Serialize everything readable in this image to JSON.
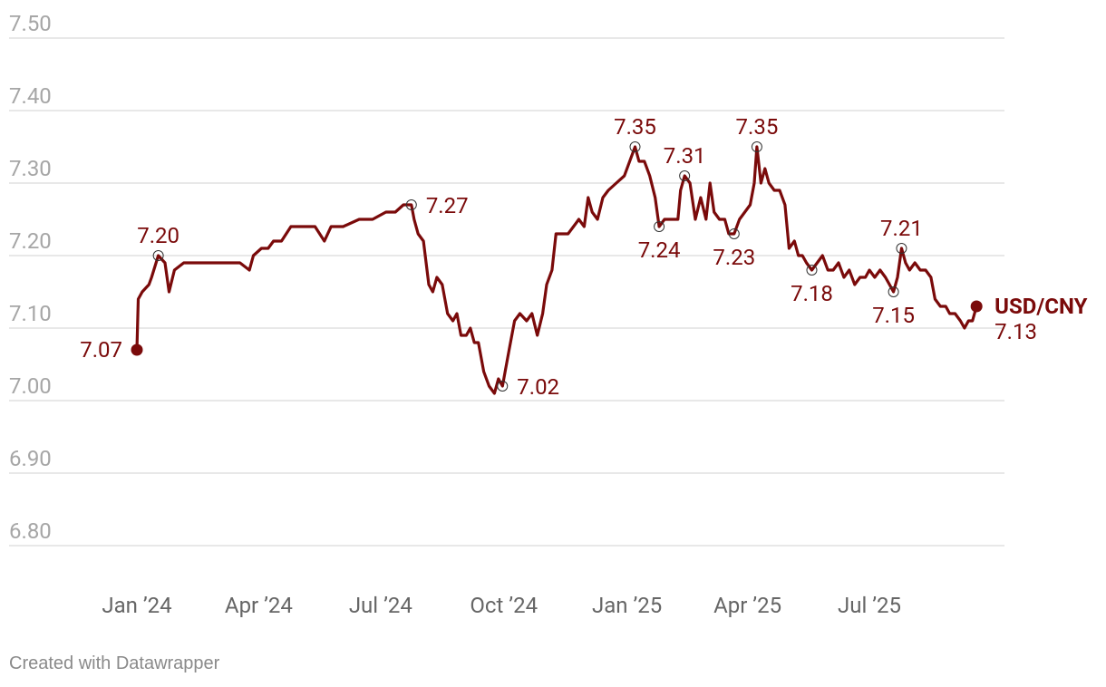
{
  "chart_data": {
    "type": "line",
    "title": "",
    "xlabel": "",
    "ylabel": "",
    "ylim": [
      6.8,
      7.5
    ],
    "y_ticks": [
      "6.80",
      "6.90",
      "7.00",
      "7.10",
      "7.20",
      "7.30",
      "7.40",
      "7.50"
    ],
    "x_ticks": [
      {
        "label": "Jan ’24",
        "x": "2024-01-01"
      },
      {
        "label": "Apr ’24",
        "x": "2024-04-01"
      },
      {
        "label": "Jul ’24",
        "x": "2024-07-01"
      },
      {
        "label": "Oct ’24",
        "x": "2024-10-01"
      },
      {
        "label": "Jan ’25",
        "x": "2025-01-01"
      },
      {
        "label": "Apr ’25",
        "x": "2025-04-01"
      },
      {
        "label": "Jul ’25",
        "x": "2025-07-01"
      }
    ],
    "x_range": [
      "2023-12-01",
      "2025-09-30"
    ],
    "series": [
      {
        "name": "USD/CNY",
        "color": "#7a0a0a",
        "points": [
          [
            "2024-01-01",
            7.07
          ],
          [
            "2024-01-02",
            7.14
          ],
          [
            "2024-01-05",
            7.15
          ],
          [
            "2024-01-10",
            7.16
          ],
          [
            "2024-01-12",
            7.17
          ],
          [
            "2024-01-17",
            7.2
          ],
          [
            "2024-01-22",
            7.19
          ],
          [
            "2024-01-25",
            7.15
          ],
          [
            "2024-01-29",
            7.18
          ],
          [
            "2024-02-05",
            7.19
          ],
          [
            "2024-02-12",
            7.19
          ],
          [
            "2024-02-20",
            7.19
          ],
          [
            "2024-03-01",
            7.19
          ],
          [
            "2024-03-10",
            7.19
          ],
          [
            "2024-03-18",
            7.19
          ],
          [
            "2024-03-25",
            7.18
          ],
          [
            "2024-03-28",
            7.2
          ],
          [
            "2024-04-03",
            7.21
          ],
          [
            "2024-04-08",
            7.21
          ],
          [
            "2024-04-12",
            7.22
          ],
          [
            "2024-04-18",
            7.22
          ],
          [
            "2024-04-25",
            7.24
          ],
          [
            "2024-05-05",
            7.24
          ],
          [
            "2024-05-13",
            7.24
          ],
          [
            "2024-05-20",
            7.22
          ],
          [
            "2024-05-25",
            7.24
          ],
          [
            "2024-06-03",
            7.24
          ],
          [
            "2024-06-15",
            7.25
          ],
          [
            "2024-06-25",
            7.25
          ],
          [
            "2024-07-05",
            7.26
          ],
          [
            "2024-07-12",
            7.26
          ],
          [
            "2024-07-18",
            7.27
          ],
          [
            "2024-07-24",
            7.27
          ],
          [
            "2024-07-26",
            7.25
          ],
          [
            "2024-07-29",
            7.23
          ],
          [
            "2024-08-02",
            7.22
          ],
          [
            "2024-08-06",
            7.16
          ],
          [
            "2024-08-09",
            7.15
          ],
          [
            "2024-08-12",
            7.17
          ],
          [
            "2024-08-16",
            7.16
          ],
          [
            "2024-08-20",
            7.12
          ],
          [
            "2024-08-24",
            7.11
          ],
          [
            "2024-08-27",
            7.12
          ],
          [
            "2024-08-30",
            7.09
          ],
          [
            "2024-09-03",
            7.09
          ],
          [
            "2024-09-06",
            7.1
          ],
          [
            "2024-09-09",
            7.08
          ],
          [
            "2024-09-12",
            7.08
          ],
          [
            "2024-09-16",
            7.04
          ],
          [
            "2024-09-20",
            7.02
          ],
          [
            "2024-09-24",
            7.01
          ],
          [
            "2024-09-27",
            7.03
          ],
          [
            "2024-09-30",
            7.02
          ],
          [
            "2024-10-02",
            7.04
          ],
          [
            "2024-10-05",
            7.07
          ],
          [
            "2024-10-09",
            7.11
          ],
          [
            "2024-10-13",
            7.12
          ],
          [
            "2024-10-18",
            7.11
          ],
          [
            "2024-10-22",
            7.12
          ],
          [
            "2024-10-26",
            7.09
          ],
          [
            "2024-10-30",
            7.12
          ],
          [
            "2024-11-02",
            7.16
          ],
          [
            "2024-11-06",
            7.18
          ],
          [
            "2024-11-09",
            7.23
          ],
          [
            "2024-11-13",
            7.23
          ],
          [
            "2024-11-18",
            7.23
          ],
          [
            "2024-11-22",
            7.24
          ],
          [
            "2024-11-26",
            7.25
          ],
          [
            "2024-11-30",
            7.24
          ],
          [
            "2024-12-03",
            7.28
          ],
          [
            "2024-12-06",
            7.26
          ],
          [
            "2024-12-10",
            7.25
          ],
          [
            "2024-12-14",
            7.28
          ],
          [
            "2024-12-18",
            7.29
          ],
          [
            "2024-12-24",
            7.3
          ],
          [
            "2024-12-30",
            7.31
          ],
          [
            "2025-01-03",
            7.33
          ],
          [
            "2025-01-07",
            7.35
          ],
          [
            "2025-01-10",
            7.33
          ],
          [
            "2025-01-14",
            7.33
          ],
          [
            "2025-01-18",
            7.31
          ],
          [
            "2025-01-22",
            7.28
          ],
          [
            "2025-01-25",
            7.24
          ],
          [
            "2025-01-29",
            7.25
          ],
          [
            "2025-02-04",
            7.25
          ],
          [
            "2025-02-08",
            7.25
          ],
          [
            "2025-02-10",
            7.29
          ],
          [
            "2025-02-13",
            7.31
          ],
          [
            "2025-02-17",
            7.3
          ],
          [
            "2025-02-21",
            7.25
          ],
          [
            "2025-02-25",
            7.28
          ],
          [
            "2025-03-01",
            7.25
          ],
          [
            "2025-03-04",
            7.3
          ],
          [
            "2025-03-07",
            7.26
          ],
          [
            "2025-03-11",
            7.25
          ],
          [
            "2025-03-15",
            7.25
          ],
          [
            "2025-03-18",
            7.23
          ],
          [
            "2025-03-22",
            7.23
          ],
          [
            "2025-03-26",
            7.25
          ],
          [
            "2025-03-30",
            7.26
          ],
          [
            "2025-04-03",
            7.27
          ],
          [
            "2025-04-06",
            7.3
          ],
          [
            "2025-04-08",
            7.35
          ],
          [
            "2025-04-11",
            7.3
          ],
          [
            "2025-04-14",
            7.32
          ],
          [
            "2025-04-17",
            7.3
          ],
          [
            "2025-04-21",
            7.29
          ],
          [
            "2025-04-25",
            7.29
          ],
          [
            "2025-04-29",
            7.27
          ],
          [
            "2025-05-02",
            7.21
          ],
          [
            "2025-05-06",
            7.22
          ],
          [
            "2025-05-09",
            7.2
          ],
          [
            "2025-05-12",
            7.2
          ],
          [
            "2025-05-15",
            7.19
          ],
          [
            "2025-05-19",
            7.18
          ],
          [
            "2025-05-23",
            7.19
          ],
          [
            "2025-05-27",
            7.2
          ],
          [
            "2025-05-31",
            7.18
          ],
          [
            "2025-06-04",
            7.18
          ],
          [
            "2025-06-08",
            7.19
          ],
          [
            "2025-06-12",
            7.17
          ],
          [
            "2025-06-16",
            7.18
          ],
          [
            "2025-06-20",
            7.16
          ],
          [
            "2025-06-24",
            7.17
          ],
          [
            "2025-06-28",
            7.17
          ],
          [
            "2025-07-01",
            7.18
          ],
          [
            "2025-07-05",
            7.17
          ],
          [
            "2025-07-09",
            7.18
          ],
          [
            "2025-07-13",
            7.17
          ],
          [
            "2025-07-16",
            7.16
          ],
          [
            "2025-07-19",
            7.15
          ],
          [
            "2025-07-22",
            7.17
          ],
          [
            "2025-07-25",
            7.21
          ],
          [
            "2025-07-28",
            7.19
          ],
          [
            "2025-07-31",
            7.18
          ],
          [
            "2025-08-04",
            7.19
          ],
          [
            "2025-08-08",
            7.18
          ],
          [
            "2025-08-12",
            7.18
          ],
          [
            "2025-08-16",
            7.17
          ],
          [
            "2025-08-19",
            7.14
          ],
          [
            "2025-08-23",
            7.13
          ],
          [
            "2025-08-27",
            7.13
          ],
          [
            "2025-08-30",
            7.12
          ],
          [
            "2025-09-03",
            7.12
          ],
          [
            "2025-09-07",
            7.11
          ],
          [
            "2025-09-10",
            7.1
          ],
          [
            "2025-09-13",
            7.11
          ],
          [
            "2025-09-16",
            7.11
          ],
          [
            "2025-09-19",
            7.13
          ]
        ]
      }
    ],
    "annotations": [
      {
        "x": "2024-01-17",
        "y": 7.2,
        "label": "7.20",
        "marker": "open",
        "pos": "above"
      },
      {
        "x": "2024-07-24",
        "y": 7.27,
        "label": "7.27",
        "marker": "open",
        "pos": "right"
      },
      {
        "x": "2024-09-30",
        "y": 7.02,
        "label": "7.02",
        "marker": "open",
        "pos": "right"
      },
      {
        "x": "2025-01-07",
        "y": 7.35,
        "label": "7.35",
        "marker": "open",
        "pos": "above"
      },
      {
        "x": "2025-01-25",
        "y": 7.24,
        "label": "7.24",
        "marker": "open",
        "pos": "below"
      },
      {
        "x": "2025-02-13",
        "y": 7.31,
        "label": "7.31",
        "marker": "open",
        "pos": "above"
      },
      {
        "x": "2025-03-22",
        "y": 7.23,
        "label": "7.23",
        "marker": "open",
        "pos": "below"
      },
      {
        "x": "2025-04-08",
        "y": 7.35,
        "label": "7.35",
        "marker": "open",
        "pos": "above"
      },
      {
        "x": "2025-05-19",
        "y": 7.18,
        "label": "7.18",
        "marker": "open",
        "pos": "below"
      },
      {
        "x": "2025-07-19",
        "y": 7.15,
        "label": "7.15",
        "marker": "open",
        "pos": "below"
      },
      {
        "x": "2025-07-25",
        "y": 7.21,
        "label": "7.21",
        "marker": "open",
        "pos": "above"
      },
      {
        "x": "2024-01-01",
        "y": 7.07,
        "label": "7.07",
        "marker": "filled",
        "pos": "left"
      },
      {
        "x": "2025-09-19",
        "y": 7.13,
        "label": "7.13",
        "marker": "filled",
        "pos": "end"
      }
    ],
    "end_label": "USD/CNY",
    "grid": true,
    "legend": "none"
  },
  "footer": {
    "credit": "Created with Datawrapper"
  }
}
